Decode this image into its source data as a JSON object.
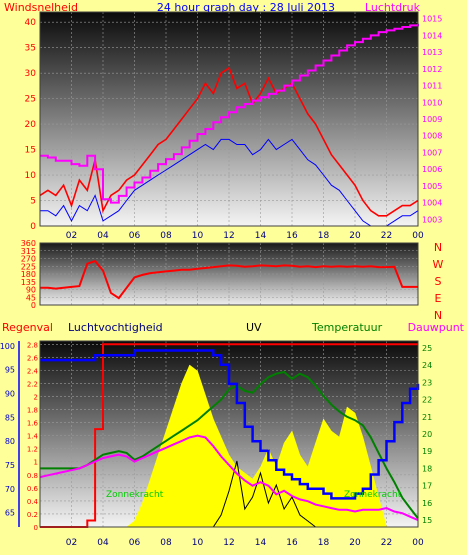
{
  "header": {
    "title": "24 hour graph day : 28 Juli 2013",
    "left_label": "Windsnelheid",
    "right_label": "Luchtdruk"
  },
  "colors": {
    "background": "#ffff99",
    "wind": "#ff0000",
    "gust_low": "#0000ff",
    "pressure": "#ff00ff",
    "humidity": "#0000ff",
    "uv": "#ffff00",
    "temperature": "#008000",
    "dewpoint": "#ff00ff",
    "rain": "#ff0000",
    "solar": "#000000",
    "ticks_left": "#ff0000",
    "ticks_right": "#ff00ff",
    "time_axis": "#000080"
  },
  "x_ticks": [
    "02",
    "04",
    "06",
    "08",
    "10",
    "12",
    "14",
    "16",
    "18",
    "20",
    "22",
    "00"
  ],
  "chart_data": [
    {
      "type": "line",
      "name": "wind-pressure",
      "x": [
        0,
        0.5,
        1,
        1.5,
        2,
        2.5,
        3,
        3.5,
        4,
        4.5,
        5,
        5.5,
        6,
        6.5,
        7,
        7.5,
        8,
        8.5,
        9,
        9.5,
        10,
        10.5,
        11,
        11.5,
        12,
        12.5,
        13,
        13.5,
        14,
        14.5,
        15,
        15.5,
        16,
        16.5,
        17,
        17.5,
        18,
        18.5,
        19,
        19.5,
        20,
        20.5,
        21,
        21.5,
        22,
        22.5,
        23,
        23.5,
        24
      ],
      "series": [
        {
          "name": "Windsnelheid",
          "values": [
            6,
            7,
            6,
            8,
            4,
            9,
            7,
            13,
            3,
            6,
            7,
            9,
            10,
            12,
            14,
            16,
            17,
            19,
            21,
            23,
            25,
            28,
            26,
            30,
            31,
            27,
            28,
            24,
            26,
            29,
            26,
            27,
            28,
            25,
            22,
            20,
            17,
            14,
            12,
            10,
            8,
            5,
            3,
            2,
            2,
            3,
            4,
            4,
            5
          ]
        },
        {
          "name": "gust-low",
          "values": [
            3,
            3,
            2,
            4,
            1,
            4,
            3,
            6,
            1,
            2,
            3,
            5,
            7,
            8,
            9,
            10,
            11,
            12,
            13,
            14,
            15,
            16,
            15,
            17,
            17,
            16,
            16,
            14,
            15,
            17,
            15,
            16,
            17,
            15,
            13,
            12,
            10,
            8,
            7,
            5,
            3,
            1,
            0,
            0,
            0,
            1,
            2,
            2,
            3
          ]
        },
        {
          "name": "Luchtdruk",
          "values": [
            1006.8,
            1006.7,
            1006.5,
            1006.5,
            1006.3,
            1006.2,
            1006.8,
            1006.0,
            1004.2,
            1004.0,
            1004.4,
            1004.9,
            1005.2,
            1005.5,
            1005.9,
            1006.3,
            1006.6,
            1006.9,
            1007.3,
            1007.7,
            1008.1,
            1008.4,
            1008.8,
            1009.1,
            1009.4,
            1009.7,
            1009.9,
            1010.1,
            1010.3,
            1010.5,
            1010.7,
            1011.0,
            1011.3,
            1011.6,
            1011.9,
            1012.2,
            1012.5,
            1012.8,
            1013.1,
            1013.4,
            1013.6,
            1013.8,
            1014.0,
            1014.2,
            1014.3,
            1014.4,
            1014.5,
            1014.6,
            1014.7
          ]
        }
      ],
      "y_left_ticks": [
        0,
        5,
        10,
        15,
        20,
        25,
        30,
        35,
        40
      ],
      "y_left_lim": [
        0,
        42
      ],
      "y_right_ticks": [
        1003,
        1004,
        1005,
        1006,
        1007,
        1008,
        1009,
        1010,
        1011,
        1012,
        1013,
        1014,
        1015
      ],
      "y_right_lim": [
        1002.6,
        1015.4
      ]
    },
    {
      "type": "line",
      "name": "wind-direction",
      "x": [
        0,
        0.5,
        1,
        1.5,
        2,
        2.5,
        3,
        3.5,
        4,
        4.5,
        5,
        5.5,
        6,
        6.5,
        7,
        7.5,
        8,
        8.5,
        9,
        9.5,
        10,
        10.5,
        11,
        11.5,
        12,
        12.5,
        13,
        13.5,
        14,
        14.5,
        15,
        15.5,
        16,
        16.5,
        17,
        17.5,
        18,
        18.5,
        19,
        19.5,
        20,
        20.5,
        21,
        21.5,
        22,
        22.5,
        23,
        23.5,
        24
      ],
      "series": [
        {
          "name": "direction",
          "values": [
            100,
            100,
            95,
            100,
            105,
            110,
            240,
            255,
            200,
            70,
            40,
            100,
            160,
            175,
            185,
            190,
            195,
            200,
            205,
            205,
            210,
            215,
            220,
            225,
            230,
            228,
            222,
            225,
            230,
            228,
            225,
            230,
            228,
            222,
            225,
            220,
            225,
            222,
            225,
            222,
            225,
            222,
            225,
            220,
            220,
            222,
            105,
            105,
            105
          ]
        }
      ],
      "y_ticks": [
        0,
        45,
        90,
        135,
        180,
        225,
        270,
        315,
        360
      ],
      "y_lim": [
        0,
        360
      ],
      "compass": [
        "N",
        "W",
        "S",
        "E",
        "N"
      ]
    },
    {
      "type": "line",
      "name": "rain-humidity-uv-temperature",
      "labels": {
        "rain": "Regenval",
        "humidity": "Luchtvochtigheid",
        "uv": "UV",
        "temperature": "Temperatuur",
        "dewpoint": "Dauwpunt",
        "solar": "Zonnekracht",
        "solar_right": "Zonnekracht"
      },
      "x": [
        0,
        0.5,
        1,
        1.5,
        2,
        2.5,
        3,
        3.5,
        4,
        4.5,
        5,
        5.5,
        6,
        6.5,
        7,
        7.5,
        8,
        8.5,
        9,
        9.5,
        10,
        10.5,
        11,
        11.5,
        12,
        12.5,
        13,
        13.5,
        14,
        14.5,
        15,
        15.5,
        16,
        16.5,
        17,
        17.5,
        18,
        18.5,
        19,
        19.5,
        20,
        20.5,
        21,
        21.5,
        22,
        22.5,
        23,
        23.5,
        24
      ],
      "series": [
        {
          "name": "Regenval",
          "values": [
            0,
            0,
            0,
            0,
            0,
            0,
            0.1,
            1.5,
            2.8,
            2.8,
            2.8,
            2.8,
            2.8,
            2.8,
            2.8,
            2.8,
            2.8,
            2.8,
            2.8,
            2.8,
            2.8,
            2.8,
            2.8,
            2.8,
            2.8,
            2.8,
            2.8,
            2.8,
            2.8,
            2.8,
            2.8,
            2.8,
            2.8,
            2.8,
            2.8,
            2.8,
            2.8,
            2.8,
            2.8,
            2.8,
            2.8,
            2.8,
            2.8,
            2.8,
            2.8,
            2.8,
            2.8,
            2.8,
            2.8
          ]
        },
        {
          "name": "Luchtvochtigheid",
          "values": [
            97,
            97,
            97,
            97,
            97,
            97,
            97,
            98,
            98,
            98,
            98,
            98,
            99,
            99,
            99,
            99,
            99,
            99,
            99,
            99,
            99,
            99,
            98,
            96,
            92,
            88,
            83,
            80,
            78,
            76,
            74,
            73,
            72,
            71,
            70,
            70,
            69,
            68,
            68,
            68,
            69,
            70,
            73,
            76,
            80,
            84,
            88,
            91,
            92
          ]
        },
        {
          "name": "UV",
          "values": [
            0,
            0,
            0,
            0,
            0,
            0,
            0,
            0,
            0,
            0,
            0,
            0,
            0.1,
            0.4,
            0.8,
            1.2,
            1.6,
            2.0,
            2.4,
            2.7,
            2.6,
            2.2,
            1.8,
            1.5,
            1.2,
            1.0,
            0.9,
            0.8,
            1.0,
            1.3,
            1.0,
            1.4,
            1.6,
            1.2,
            1.0,
            1.4,
            1.8,
            1.6,
            1.5,
            2.0,
            1.9,
            1.5,
            1.0,
            0.5,
            0,
            0,
            0,
            0,
            0
          ]
        },
        {
          "name": "Temperatuur",
          "values": [
            18.0,
            18.0,
            18.0,
            18.0,
            18.0,
            18.0,
            18.2,
            18.5,
            18.8,
            18.9,
            19.0,
            18.9,
            18.5,
            18.7,
            19.0,
            19.3,
            19.6,
            19.9,
            20.2,
            20.5,
            20.8,
            21.2,
            21.6,
            22.0,
            22.6,
            22.8,
            22.5,
            22.4,
            22.9,
            23.3,
            23.5,
            23.6,
            23.2,
            23.5,
            23.3,
            22.8,
            22.2,
            21.7,
            21.3,
            21.0,
            20.8,
            20.5,
            19.8,
            18.9,
            18.0,
            17.2,
            16.3,
            15.7,
            15.1
          ]
        },
        {
          "name": "Dauwpunt",
          "values": [
            17.5,
            17.6,
            17.7,
            17.8,
            17.9,
            18.0,
            18.2,
            18.4,
            18.6,
            18.7,
            18.8,
            18.7,
            18.4,
            18.6,
            18.8,
            19.0,
            19.2,
            19.4,
            19.6,
            19.8,
            19.9,
            19.8,
            19.3,
            18.7,
            18.2,
            17.7,
            17.3,
            17.0,
            17.2,
            17.0,
            16.5,
            16.7,
            16.4,
            16.2,
            16.1,
            15.9,
            15.8,
            15.7,
            15.6,
            15.6,
            15.5,
            15.6,
            15.6,
            15.6,
            15.7,
            15.5,
            15.4,
            15.2,
            15.0
          ]
        },
        {
          "name": "Zonnekracht",
          "values": [
            0,
            0,
            0,
            0,
            0,
            0,
            0,
            0,
            0,
            0,
            0,
            0,
            0,
            0,
            0,
            0,
            0,
            0,
            0,
            0,
            0,
            0,
            0,
            0.2,
            0.6,
            1.1,
            0.3,
            0.5,
            0.9,
            0.4,
            0.7,
            0.3,
            0.5,
            0.2,
            0.1,
            0,
            0,
            0,
            0,
            0,
            0,
            0,
            0,
            0,
            0,
            0,
            0,
            0,
            0
          ]
        }
      ],
      "y_rain_ticks": [
        0,
        0.2,
        0.4,
        0.6,
        0.8,
        1,
        1.2,
        1.4,
        1.6,
        1.8,
        2,
        2.2,
        2.4,
        2.6,
        2.8
      ],
      "y_rain_lim": [
        0,
        2.85
      ],
      "y_hum_ticks": [
        65,
        70,
        75,
        80,
        85,
        90,
        95,
        100
      ],
      "y_hum_lim": [
        62,
        101
      ],
      "y_temp_ticks": [
        15,
        16,
        17,
        18,
        19,
        20,
        21,
        22,
        23,
        24,
        25
      ],
      "y_temp_lim": [
        14.6,
        25.4
      ],
      "y_uv_lim": [
        0,
        3.1
      ]
    }
  ]
}
